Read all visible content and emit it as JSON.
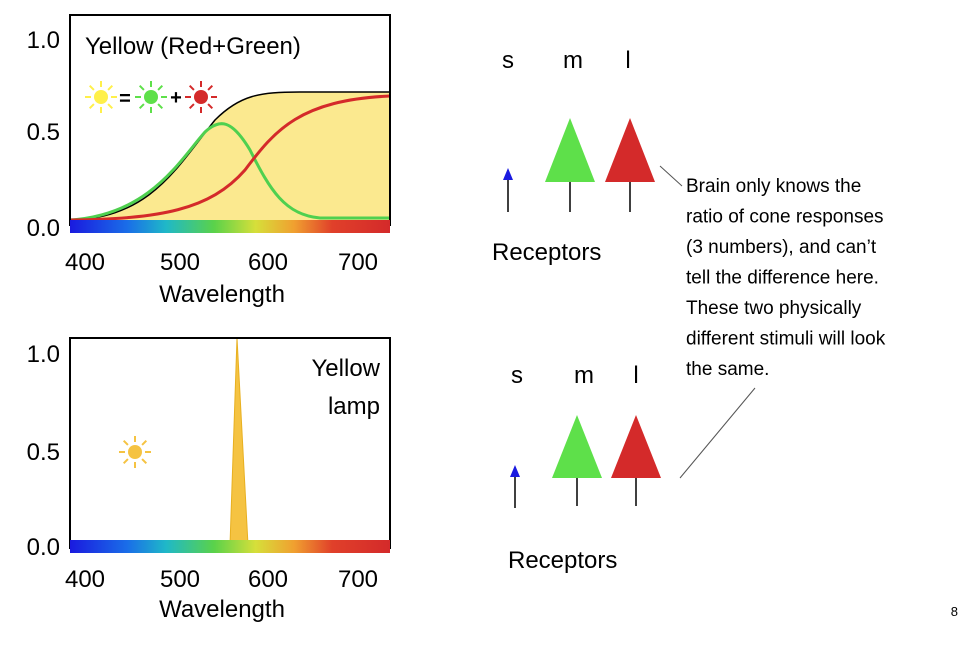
{
  "top_plot": {
    "title": "Yellow (Red+Green)",
    "yticks": [
      "1.0",
      "0.5",
      "0.0"
    ],
    "xticks": [
      "400",
      "500",
      "600",
      "700"
    ],
    "xlabel": "Wavelength",
    "equation": [
      "=",
      "+"
    ]
  },
  "bottom_plot": {
    "label": [
      "Yellow",
      "lamp"
    ],
    "yticks": [
      "1.0",
      "0.5",
      "0.0"
    ],
    "xticks": [
      "400",
      "500",
      "600",
      "700"
    ],
    "xlabel": "Wavelength"
  },
  "top_receptors": {
    "cones": [
      "s",
      "m",
      "l"
    ],
    "label": "Receptors"
  },
  "bottom_receptors": {
    "cones": [
      "s",
      "m",
      "l"
    ],
    "label": "Receptors"
  },
  "note": [
    "Brain only knows the",
    "ratio of cone responses",
    "(3 numbers), and can’t",
    "tell the difference here.",
    "These two physically",
    "different stimuli will look",
    "the same."
  ],
  "page_number": "8"
}
